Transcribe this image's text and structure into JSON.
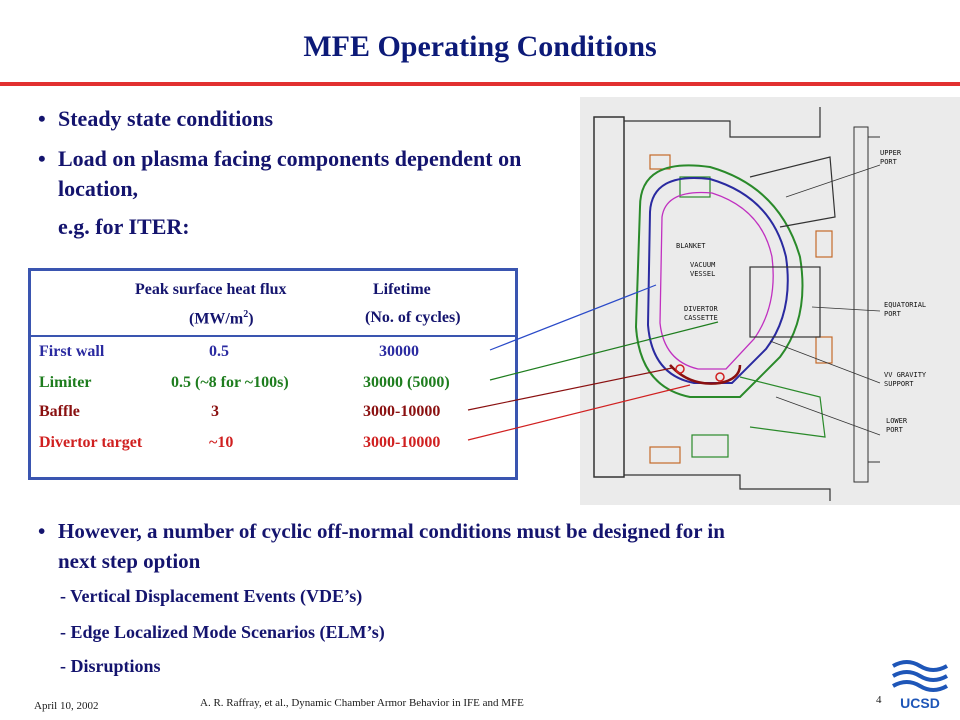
{
  "title": "MFE Operating Conditions",
  "bullets_top": [
    "Steady state conditions",
    "Load on plasma facing components dependent on location,",
    "e.g. for ITER:"
  ],
  "table": {
    "header_col2_line1": "Peak surface heat flux",
    "header_col3_line1": "Lifetime",
    "header_col2_line2_base": "(MW/m",
    "header_col2_line2_sup": "2",
    "header_col2_line2_end": ")",
    "header_col3_line2": "(No. of cycles)",
    "rows": [
      {
        "name": "First wall",
        "flux": "0.5",
        "life": "30000",
        "color": "#2a2aa0"
      },
      {
        "name": "Limiter",
        "flux": "0.5 (~8 for ~100s)",
        "life": "30000 (5000)",
        "color": "#1e7d1e"
      },
      {
        "name": "Baffle",
        "flux": "3",
        "life": "3000-10000",
        "color": "#8a1010"
      },
      {
        "name": "Divertor target",
        "flux": "~10",
        "life": "3000-10000",
        "color": "#d02020"
      }
    ]
  },
  "bullet_bottom": {
    "line1": "However, a number of cyclic off-normal conditions must be designed for in",
    "line2": "next step option",
    "subs": [
      "-  Vertical Displacement Events (VDE’s)",
      "-  Edge Localized Mode Scenarios (ELM’s)",
      "-  Disruptions"
    ]
  },
  "diagram_labels": {
    "upper_port": [
      "UPPER",
      "PORT"
    ],
    "blanket": "BLANKET",
    "vacuum_vessel": [
      "VACUUM",
      "VESSEL"
    ],
    "divertor_cassette": [
      "DIVERTOR",
      "CASSETTE"
    ],
    "equatorial_port": [
      "EQUATORIAL",
      "PORT"
    ],
    "vv_gravity_support": [
      "VV GRAVITY",
      "SUPPORT"
    ],
    "lower_port": [
      "LOWER",
      "PORT"
    ]
  },
  "footer": {
    "date": "April 10, 2002",
    "citation": "A. R. Raffray, et al., Dynamic Chamber Armor Behavior in IFE and MFE",
    "page": "4",
    "logo_text": "UCSD"
  }
}
